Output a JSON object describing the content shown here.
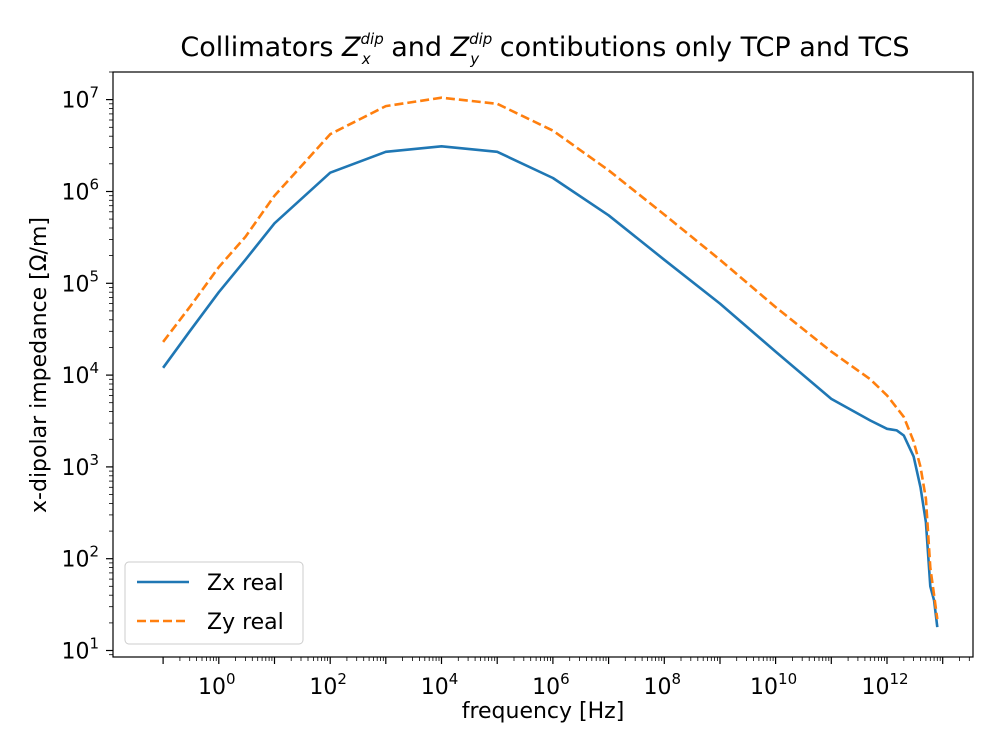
{
  "chart_data": {
    "type": "line",
    "title": {
      "lead": "Collimators ",
      "zx_base": "Z",
      "zx_sup": "dip",
      "zx_sub": "x",
      "mid": " and ",
      "zy_base": "Z",
      "zy_sup": "dip",
      "zy_sub": "y",
      "tail": " contibutions only TCP and TCS"
    },
    "xlabel": "frequency [Hz]",
    "ylabel": "x-dipolar impedance [Ω/m]",
    "xscale": "log",
    "yscale": "log",
    "xlim": [
      0.0126,
      35000000000000.0
    ],
    "ylim": [
      8.5,
      20000000.0
    ],
    "x_ticks": [
      {
        "base": "10",
        "exp": "0",
        "value": 1
      },
      {
        "base": "10",
        "exp": "2",
        "value": 100
      },
      {
        "base": "10",
        "exp": "4",
        "value": 10000
      },
      {
        "base": "10",
        "exp": "6",
        "value": 1000000
      },
      {
        "base": "10",
        "exp": "8",
        "value": 100000000
      },
      {
        "base": "10",
        "exp": "10",
        "value": 10000000000
      },
      {
        "base": "10",
        "exp": "12",
        "value": 1000000000000
      }
    ],
    "y_ticks": [
      {
        "base": "10",
        "exp": "1",
        "value": 10
      },
      {
        "base": "10",
        "exp": "2",
        "value": 100
      },
      {
        "base": "10",
        "exp": "3",
        "value": 1000
      },
      {
        "base": "10",
        "exp": "4",
        "value": 10000
      },
      {
        "base": "10",
        "exp": "5",
        "value": 100000
      },
      {
        "base": "10",
        "exp": "6",
        "value": 1000000
      },
      {
        "base": "10",
        "exp": "7",
        "value": 10000000
      }
    ],
    "grid": false,
    "legend_position": "lower-left",
    "series": [
      {
        "name": "Zx real",
        "color": "#1f77b4",
        "dash": "solid",
        "points": [
          [
            0.1,
            12000
          ],
          [
            0.3,
            30000
          ],
          [
            1,
            80000
          ],
          [
            3,
            180000
          ],
          [
            10,
            450000
          ],
          [
            100,
            1600000
          ],
          [
            1000,
            2700000
          ],
          [
            10000,
            3100000
          ],
          [
            100000,
            2700000
          ],
          [
            1000000,
            1400000
          ],
          [
            10000000,
            550000
          ],
          [
            100000000,
            180000
          ],
          [
            1000000000,
            60000
          ],
          [
            10000000000,
            18000
          ],
          [
            100000000000,
            5500
          ],
          [
            500000000000,
            3200
          ],
          [
            1000000000000,
            2600
          ],
          [
            1500000000000,
            2500
          ],
          [
            2000000000000,
            2200
          ],
          [
            3000000000000,
            1300
          ],
          [
            4000000000000,
            600
          ],
          [
            5000000000000,
            250
          ],
          [
            6000000000000,
            50
          ],
          [
            7000000000000,
            35
          ],
          [
            8000000000000,
            18
          ]
        ]
      },
      {
        "name": "Zy real",
        "color": "#ff7f0e",
        "dash": "dashed",
        "points": [
          [
            0.1,
            23000
          ],
          [
            0.3,
            55000
          ],
          [
            1,
            150000
          ],
          [
            3,
            320000
          ],
          [
            10,
            900000
          ],
          [
            100,
            4200000
          ],
          [
            1000,
            8500000
          ],
          [
            10000,
            10500000
          ],
          [
            100000,
            9000000
          ],
          [
            1000000,
            4600000
          ],
          [
            10000000,
            1700000
          ],
          [
            100000000,
            560000
          ],
          [
            1000000000,
            180000
          ],
          [
            10000000000,
            55000
          ],
          [
            100000000000,
            18000
          ],
          [
            500000000000,
            9000
          ],
          [
            1000000000000,
            6000
          ],
          [
            2000000000000,
            3500
          ],
          [
            3000000000000,
            1900
          ],
          [
            4000000000000,
            1000
          ],
          [
            5000000000000,
            450
          ],
          [
            6000000000000,
            80
          ],
          [
            7000000000000,
            40
          ],
          [
            8000000000000,
            22
          ]
        ]
      }
    ]
  }
}
